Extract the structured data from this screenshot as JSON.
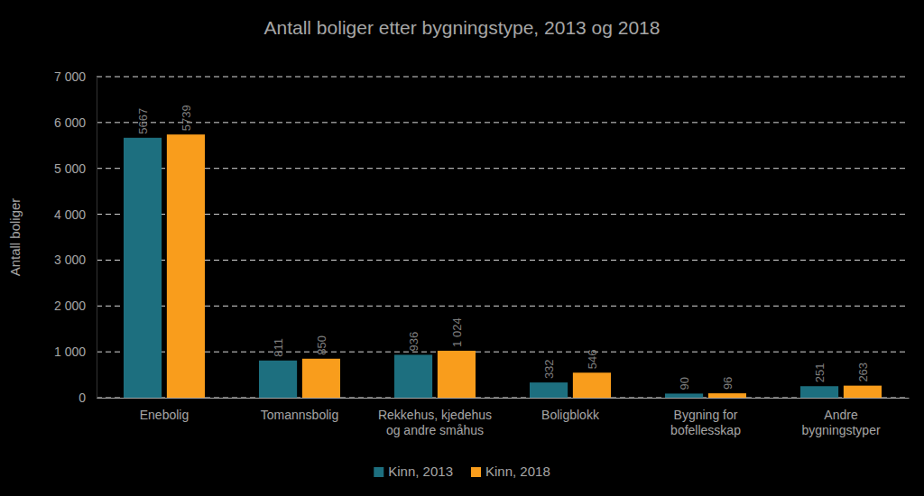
{
  "chart_data": {
    "type": "bar",
    "title": "Antall boliger etter bygningstype, 2013 og 2018",
    "y_label": "Antall boliger",
    "categories": [
      "Enebolig",
      "Tomannsbolig",
      "Rekkehus, kjedehus\nog andre småhus",
      "Boligblokk",
      "Bygning for\nbofellesskap",
      "Andre\nbygningstyper"
    ],
    "series": [
      {
        "name": "Kinn, 2013",
        "color": "#1d6f7f",
        "values": [
          5667,
          811,
          936,
          332,
          90,
          251
        ]
      },
      {
        "name": "Kinn, 2018",
        "color": "#f99d1c",
        "values": [
          5739,
          850,
          1024,
          546,
          96,
          263
        ],
        "value_labels": [
          "5739",
          "850",
          "1 024",
          "546",
          "96",
          "263"
        ]
      }
    ],
    "ylim": [
      0,
      7000
    ],
    "yticks": [
      0,
      {
        "value": 1000,
        "label": "1 000"
      },
      {
        "value": 2000,
        "label": "2 000"
      },
      {
        "value": 3000,
        "label": "3 000"
      },
      {
        "value": 4000,
        "label": "4 000"
      },
      {
        "value": 5000,
        "label": "5 000"
      },
      {
        "value": 6000,
        "label": "6 000"
      },
      {
        "value": 7000,
        "label": "7 000"
      }
    ],
    "grid": true,
    "legend": "bottom",
    "data_labels": true
  }
}
